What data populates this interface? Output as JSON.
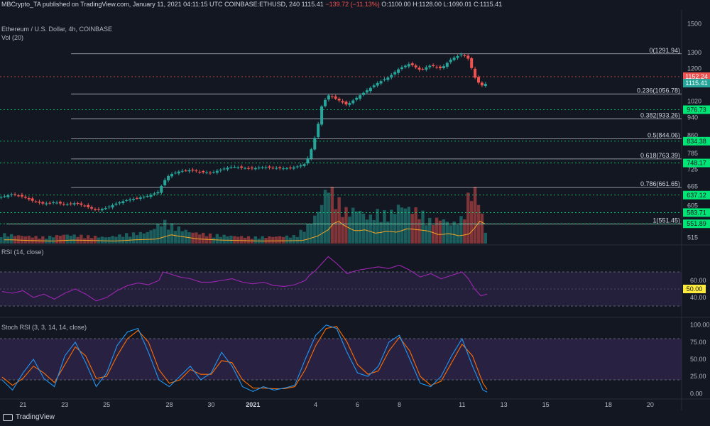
{
  "header": {
    "publisher": "MBCrypto_TA",
    "published_text": "published on TradingView.com, January 11, 2021 04:11:15 UTC",
    "symbol": "COINBASE:ETHUSD, 240",
    "last": "1115.41",
    "change": "−139.72 (−11.13%)",
    "ohlc": "O:1100.00 H:1128.00 L:1090.01 C:1115.41"
  },
  "main_pane": {
    "title": "Ethereum / U.S. Dollar, 4h, COINBASE",
    "vol_label": "Vol (20)"
  },
  "rsi_pane": {
    "title": "RSI (14, close)"
  },
  "stoch_pane": {
    "title": "Stoch RSI (3, 3, 14, 14, close)"
  },
  "footer": {
    "brand": "TradingView"
  },
  "colors": {
    "up": "#26a69a",
    "down": "#ef5350",
    "fib": "#d1d4dc",
    "green_level": "#00e676",
    "red_level": "#ef5350",
    "rsi_line": "#9c27b0",
    "stoch_k": "#2196f3",
    "stoch_d": "#ff6d00",
    "band": "#3a2a5c",
    "vol_ma": "#f5a623"
  },
  "chart_data": {
    "type": "candlestick",
    "price_axis": {
      "scale": "log",
      "ticks": [
        1500,
        1300,
        1200,
        1020,
        940,
        860,
        785,
        725,
        665,
        605,
        515
      ],
      "ylim": [
        500,
        1520
      ]
    },
    "x_ticks": [
      "21",
      "23",
      "25",
      "28",
      "30",
      "2021",
      "4",
      "6",
      "8",
      "11",
      "13",
      "15",
      "18",
      "20"
    ],
    "x_tick_days": [
      -11,
      -9,
      -7,
      -4,
      -2,
      0,
      3,
      5,
      7,
      10,
      12,
      14,
      17,
      19
    ],
    "x_range_days": [
      -12.1,
      20.5
    ],
    "last_price": 1115.41,
    "price_labels": [
      {
        "value": 1152.24,
        "text": "1152.24",
        "color": "#ef5350"
      },
      {
        "value": 1115.41,
        "text": "1115.41",
        "color": "#26a69a"
      },
      {
        "value": 976.73,
        "text": "976.73",
        "color": "#00e676"
      },
      {
        "value": 834.38,
        "text": "834.38",
        "color": "#00e676"
      },
      {
        "value": 748.17,
        "text": "748.17",
        "color": "#00e676"
      },
      {
        "value": 637.12,
        "text": "637.12",
        "color": "#00e676"
      },
      {
        "value": 583.71,
        "text": "583.71",
        "color": "#00e676"
      },
      {
        "value": 551.89,
        "text": "551.89",
        "color": "#00e676"
      }
    ],
    "fib_levels": [
      {
        "ratio": "0",
        "value": 1291.94,
        "text": "0(1291.94)"
      },
      {
        "ratio": "0.236",
        "value": 1056.78,
        "text": "0.236(1056.78)"
      },
      {
        "ratio": "0.382",
        "value": 933.26,
        "text": "0.382(933.26)"
      },
      {
        "ratio": "0.5",
        "value": 844.06,
        "text": "0.5(844.06)"
      },
      {
        "ratio": "0.618",
        "value": 763.39,
        "text": "0.618(763.39)"
      },
      {
        "ratio": "0.786",
        "value": 661.65,
        "text": "0.786(661.65)"
      },
      {
        "ratio": "1",
        "value": 551.45,
        "text": "1(551.45)"
      }
    ],
    "price_path": [
      [
        -12.1,
        630
      ],
      [
        -11.5,
        640
      ],
      [
        -11,
        632
      ],
      [
        -10.5,
        618
      ],
      [
        -10,
        610
      ],
      [
        -9.5,
        615
      ],
      [
        -9,
        608
      ],
      [
        -8.5,
        612
      ],
      [
        -8,
        603
      ],
      [
        -7.5,
        590
      ],
      [
        -7,
        598
      ],
      [
        -6.5,
        612
      ],
      [
        -6,
        622
      ],
      [
        -5.5,
        628
      ],
      [
        -5,
        635
      ],
      [
        -4.5,
        648
      ],
      [
        -4.3,
        680
      ],
      [
        -4,
        705
      ],
      [
        -3.5,
        718
      ],
      [
        -3,
        722
      ],
      [
        -2.5,
        715
      ],
      [
        -2,
        712
      ],
      [
        -1.5,
        725
      ],
      [
        -1,
        735
      ],
      [
        -0.5,
        730
      ],
      [
        0,
        728
      ],
      [
        0.5,
        733
      ],
      [
        1,
        730
      ],
      [
        1.5,
        728
      ],
      [
        2,
        732
      ],
      [
        2.5,
        745
      ],
      [
        2.7,
        780
      ],
      [
        2.9,
        830
      ],
      [
        3.1,
        900
      ],
      [
        3.3,
        1000
      ],
      [
        3.6,
        1050
      ],
      [
        4,
        1030
      ],
      [
        4.5,
        1000
      ],
      [
        5,
        1040
      ],
      [
        5.5,
        1080
      ],
      [
        6,
        1120
      ],
      [
        6.5,
        1150
      ],
      [
        7,
        1200
      ],
      [
        7.5,
        1230
      ],
      [
        8,
        1190
      ],
      [
        8.5,
        1220
      ],
      [
        9,
        1200
      ],
      [
        9.5,
        1260
      ],
      [
        10,
        1290
      ],
      [
        10.3,
        1260
      ],
      [
        10.6,
        1150
      ],
      [
        10.9,
        1100
      ],
      [
        11.2,
        1115.41
      ]
    ],
    "volume_path": [
      [
        -12,
        0.15
      ],
      [
        -11,
        0.12
      ],
      [
        -10,
        0.1
      ],
      [
        -9,
        0.14
      ],
      [
        -8,
        0.12
      ],
      [
        -7,
        0.1
      ],
      [
        -6,
        0.15
      ],
      [
        -5,
        0.18
      ],
      [
        -4.3,
        0.35
      ],
      [
        -4,
        0.3
      ],
      [
        -3,
        0.18
      ],
      [
        -2,
        0.14
      ],
      [
        -1,
        0.12
      ],
      [
        0,
        0.1
      ],
      [
        1,
        0.11
      ],
      [
        2,
        0.12
      ],
      [
        2.7,
        0.3
      ],
      [
        3.2,
        0.55
      ],
      [
        3.6,
        0.95
      ],
      [
        4,
        0.7
      ],
      [
        4.5,
        0.5
      ],
      [
        5,
        0.55
      ],
      [
        5.5,
        0.4
      ],
      [
        6,
        0.5
      ],
      [
        6.5,
        0.45
      ],
      [
        7,
        0.6
      ],
      [
        7.5,
        0.55
      ],
      [
        8,
        0.5
      ],
      [
        8.5,
        0.35
      ],
      [
        9,
        0.4
      ],
      [
        9.5,
        0.3
      ],
      [
        10,
        0.4
      ],
      [
        10.5,
        0.95
      ],
      [
        10.8,
        0.7
      ],
      [
        11.2,
        0.05
      ]
    ],
    "rsi": {
      "range": [
        20,
        100
      ],
      "ticks": [
        60,
        50,
        40
      ],
      "bands": [
        70,
        30
      ],
      "label": {
        "value": 50,
        "text": "50.00"
      },
      "series": [
        [
          -12,
          47
        ],
        [
          -11.5,
          45
        ],
        [
          -11,
          48
        ],
        [
          -10.5,
          40
        ],
        [
          -10,
          44
        ],
        [
          -9.5,
          38
        ],
        [
          -9,
          45
        ],
        [
          -8.5,
          50
        ],
        [
          -8,
          44
        ],
        [
          -7.5,
          36
        ],
        [
          -7,
          40
        ],
        [
          -6.5,
          48
        ],
        [
          -6,
          54
        ],
        [
          -5.5,
          57
        ],
        [
          -5,
          55
        ],
        [
          -4.5,
          60
        ],
        [
          -4.3,
          70
        ],
        [
          -4,
          68
        ],
        [
          -3.5,
          64
        ],
        [
          -3,
          62
        ],
        [
          -2.5,
          58
        ],
        [
          -2,
          58
        ],
        [
          -1.5,
          60
        ],
        [
          -1,
          62
        ],
        [
          -0.5,
          58
        ],
        [
          0,
          56
        ],
        [
          0.5,
          58
        ],
        [
          1,
          54
        ],
        [
          1.5,
          53
        ],
        [
          2,
          55
        ],
        [
          2.5,
          60
        ],
        [
          2.7,
          66
        ],
        [
          3,
          72
        ],
        [
          3.3,
          80
        ],
        [
          3.6,
          88
        ],
        [
          4,
          80
        ],
        [
          4.5,
          68
        ],
        [
          5,
          72
        ],
        [
          5.5,
          74
        ],
        [
          6,
          76
        ],
        [
          6.5,
          74
        ],
        [
          7,
          78
        ],
        [
          7.5,
          72
        ],
        [
          8,
          64
        ],
        [
          8.5,
          68
        ],
        [
          9,
          62
        ],
        [
          9.5,
          66
        ],
        [
          10,
          70
        ],
        [
          10.3,
          62
        ],
        [
          10.6,
          50
        ],
        [
          10.9,
          42
        ],
        [
          11.2,
          44
        ]
      ]
    },
    "stoch_rsi": {
      "range": [
        -8,
        108
      ],
      "ticks": [
        100,
        75,
        50,
        25,
        0
      ],
      "bands": [
        80,
        20
      ],
      "k": [
        [
          -12,
          20
        ],
        [
          -11.5,
          5
        ],
        [
          -11,
          30
        ],
        [
          -10.5,
          50
        ],
        [
          -10,
          22
        ],
        [
          -9.5,
          10
        ],
        [
          -9,
          55
        ],
        [
          -8.5,
          75
        ],
        [
          -8,
          45
        ],
        [
          -7.5,
          10
        ],
        [
          -7,
          30
        ],
        [
          -6.5,
          70
        ],
        [
          -6,
          90
        ],
        [
          -5.5,
          95
        ],
        [
          -5,
          60
        ],
        [
          -4.5,
          20
        ],
        [
          -4,
          10
        ],
        [
          -3.5,
          25
        ],
        [
          -3,
          40
        ],
        [
          -2.5,
          20
        ],
        [
          -2,
          30
        ],
        [
          -1.5,
          60
        ],
        [
          -1,
          40
        ],
        [
          -0.5,
          10
        ],
        [
          0,
          3
        ],
        [
          0.5,
          10
        ],
        [
          1,
          5
        ],
        [
          1.5,
          8
        ],
        [
          2,
          12
        ],
        [
          2.5,
          50
        ],
        [
          3,
          85
        ],
        [
          3.5,
          100
        ],
        [
          4,
          95
        ],
        [
          4.5,
          60
        ],
        [
          5,
          30
        ],
        [
          5.5,
          25
        ],
        [
          6,
          40
        ],
        [
          6.5,
          75
        ],
        [
          7,
          85
        ],
        [
          7.5,
          50
        ],
        [
          8,
          15
        ],
        [
          8.5,
          10
        ],
        [
          9,
          25
        ],
        [
          9.5,
          55
        ],
        [
          10,
          80
        ],
        [
          10.5,
          40
        ],
        [
          11,
          5
        ],
        [
          11.2,
          2
        ]
      ],
      "d": [
        [
          -12,
          24
        ],
        [
          -11.5,
          12
        ],
        [
          -11,
          22
        ],
        [
          -10.5,
          40
        ],
        [
          -10,
          30
        ],
        [
          -9.5,
          16
        ],
        [
          -9,
          42
        ],
        [
          -8.5,
          68
        ],
        [
          -8,
          55
        ],
        [
          -7.5,
          22
        ],
        [
          -7,
          25
        ],
        [
          -6.5,
          55
        ],
        [
          -6,
          80
        ],
        [
          -5.5,
          92
        ],
        [
          -5,
          75
        ],
        [
          -4.5,
          35
        ],
        [
          -4,
          15
        ],
        [
          -3.5,
          20
        ],
        [
          -3,
          35
        ],
        [
          -2.5,
          28
        ],
        [
          -2,
          28
        ],
        [
          -1.5,
          48
        ],
        [
          -1,
          45
        ],
        [
          -0.5,
          20
        ],
        [
          0,
          8
        ],
        [
          0.5,
          8
        ],
        [
          1,
          7
        ],
        [
          1.5,
          7
        ],
        [
          2,
          10
        ],
        [
          2.5,
          35
        ],
        [
          3,
          70
        ],
        [
          3.5,
          95
        ],
        [
          4,
          98
        ],
        [
          4.5,
          75
        ],
        [
          5,
          42
        ],
        [
          5.5,
          28
        ],
        [
          6,
          33
        ],
        [
          6.5,
          62
        ],
        [
          7,
          82
        ],
        [
          7.5,
          62
        ],
        [
          8,
          25
        ],
        [
          8.5,
          12
        ],
        [
          9,
          18
        ],
        [
          9.5,
          45
        ],
        [
          10,
          72
        ],
        [
          10.5,
          55
        ],
        [
          11,
          15
        ],
        [
          11.2,
          6
        ]
      ]
    }
  }
}
